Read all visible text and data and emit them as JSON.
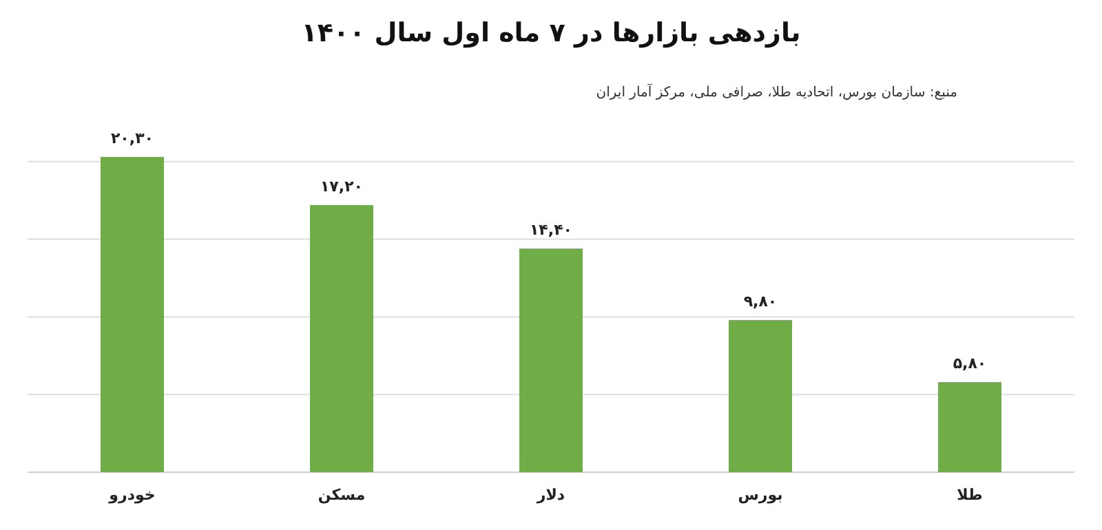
{
  "chart_data": {
    "type": "bar",
    "title": "بازدهی بازارها در ۷ ماه اول سال ۱۴۰۰",
    "annotations": [
      "منبع: سازمان بورس، اتحادیه طلا، صرافی ملی، مرکز آمار ایران"
    ],
    "categories": [
      "خودرو",
      "مسکن",
      "دلار",
      "بورس",
      "طلا"
    ],
    "values": [
      20.3,
      17.2,
      14.4,
      9.8,
      5.8
    ],
    "value_labels": [
      "۲۰,۳۰",
      "۱۷,۲۰",
      "۱۴,۴۰",
      "۹,۸۰",
      "۵,۸۰"
    ],
    "color": "#70ad47",
    "yticks": [
      {
        "value": 0,
        "label": null
      },
      {
        "value": 5,
        "label": null
      },
      {
        "value": 10,
        "label": null
      },
      {
        "value": 15,
        "label": null
      },
      {
        "value": 20,
        "label": null
      }
    ],
    "grid": "y",
    "tick_labels": "x"
  }
}
